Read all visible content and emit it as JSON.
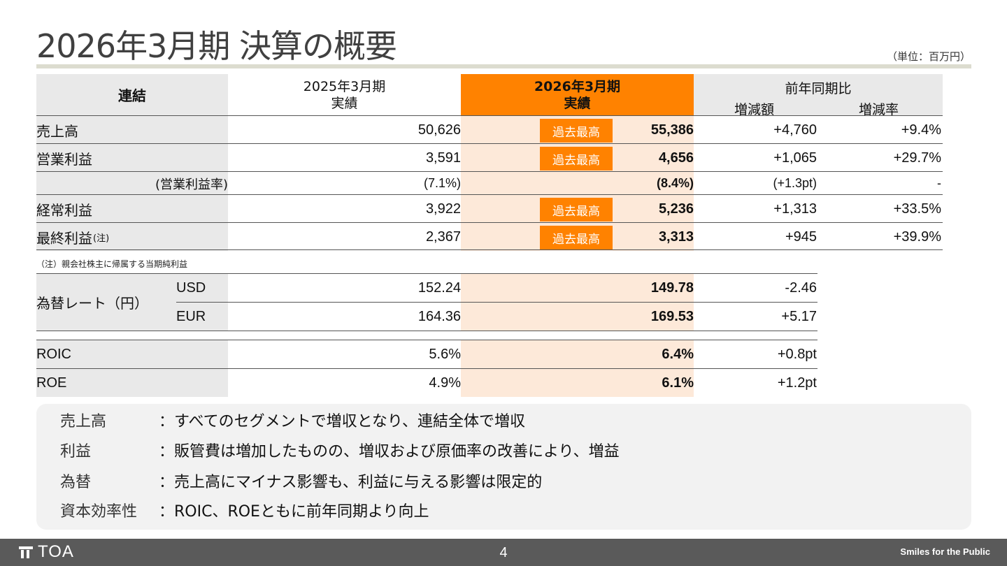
{
  "title": "2026年3月期 決算の概要",
  "unit": "（単位：百万円）",
  "header": {
    "consolidated": "連結",
    "prev_line1": "2025年3月期",
    "prev_line2": "実績",
    "curr_line1": "2026年3月期",
    "curr_line2": "実績",
    "yoy": "前年同期比",
    "diff": "増減額",
    "rate": "増減率"
  },
  "record_badge": "過去最高",
  "rows": [
    {
      "label": "売上高",
      "prev": "50,626",
      "curr": "55,386",
      "diff": "+4,760",
      "rate": "+9.4%",
      "badge": "過去最高"
    },
    {
      "label": "営業利益",
      "prev": "3,591",
      "curr": "4,656",
      "diff": "+1,065",
      "rate": "+29.7%",
      "badge": "過去最高"
    },
    {
      "label": "(営業利益率)",
      "prev": "(7.1%)",
      "curr": "(8.4%)",
      "diff": "(+1.3pt)",
      "rate": "-"
    },
    {
      "label": "経常利益",
      "prev": "3,922",
      "curr": "5,236",
      "diff": "+1,313",
      "rate": "+33.5%",
      "badge": "過去最高"
    },
    {
      "label": "最終利益",
      "label_note": "(注)",
      "prev": "2,367",
      "curr": "3,313",
      "diff": "+945",
      "rate": "+39.9%",
      "badge": "過去最高"
    }
  ],
  "note": "（注）親会社株主に帰属する当期純利益",
  "fx": {
    "label": "為替レート（円）",
    "rows": [
      {
        "currency": "USD",
        "prev": "152.24",
        "curr": "149.78",
        "diff": "-2.46"
      },
      {
        "currency": "EUR",
        "prev": "164.36",
        "curr": "169.53",
        "diff": "+5.17"
      }
    ]
  },
  "efficiency": [
    {
      "label": "ROIC",
      "prev": "5.6%",
      "curr": "6.4%",
      "diff": "+0.8pt"
    },
    {
      "label": "ROE",
      "prev": "4.9%",
      "curr": "6.1%",
      "diff": "+1.2pt"
    }
  ],
  "summary": [
    {
      "key": "売上高",
      "value": "：すべてのセグメントで増収となり、連結全体で増収"
    },
    {
      "key": "利益",
      "value": "：販管費は増加したものの、増収および原価率の改善により、増益"
    },
    {
      "key": "為替",
      "value": "：売上高にマイナス影響も、利益に与える影響は限定的"
    },
    {
      "key": "資本効率性",
      "value": "：ROIC、ROEともに前年同期より向上"
    }
  ],
  "footer": {
    "logo": "TOA",
    "page": "4",
    "tagline": "Smiles for the Public"
  },
  "colors": {
    "accent": "#ff8200",
    "highlight": "#fde9d9",
    "label_bg": "#e9e9e9",
    "footer_bg": "#5a5a5a"
  }
}
